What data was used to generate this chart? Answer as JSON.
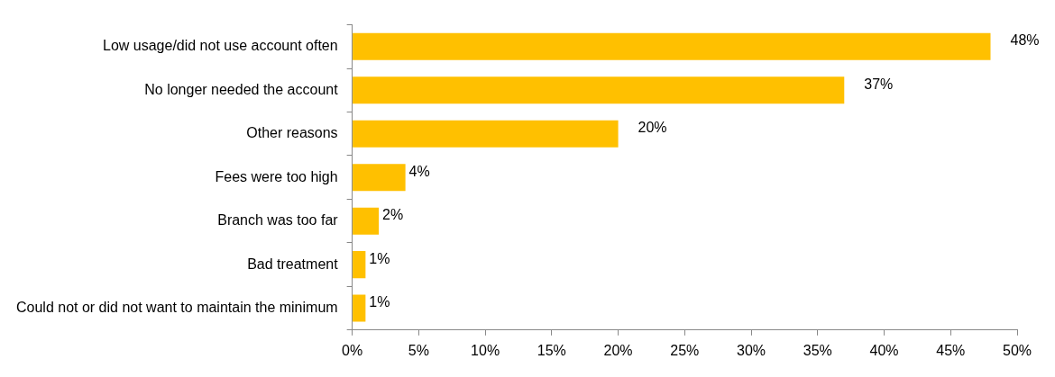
{
  "chart_data": {
    "type": "bar",
    "orientation": "horizontal",
    "categories": [
      "Low usage/did not use account often",
      "No longer needed the account",
      "Other reasons",
      "Fees were too high",
      "Branch was too far",
      "Bad treatment",
      "Could not or did not want to maintain the minimum"
    ],
    "values": [
      48,
      37,
      20,
      4,
      2,
      1,
      1
    ],
    "value_labels": [
      "48%",
      "37%",
      "20%",
      "4%",
      "2%",
      "1%",
      "1%"
    ],
    "color": "#ffc000",
    "xlim": [
      0,
      50
    ],
    "xticks": [
      {
        "value": 0,
        "label": "0%"
      },
      {
        "value": 5,
        "label": "5%"
      },
      {
        "value": 10,
        "label": "10%"
      },
      {
        "value": 15,
        "label": "15%"
      },
      {
        "value": 20,
        "label": "20%"
      },
      {
        "value": 25,
        "label": "25%"
      },
      {
        "value": 30,
        "label": "30%"
      },
      {
        "value": 35,
        "label": "35%"
      },
      {
        "value": 40,
        "label": "40%"
      },
      {
        "value": 45,
        "label": "45%"
      },
      {
        "value": 50,
        "label": "50%"
      }
    ]
  }
}
